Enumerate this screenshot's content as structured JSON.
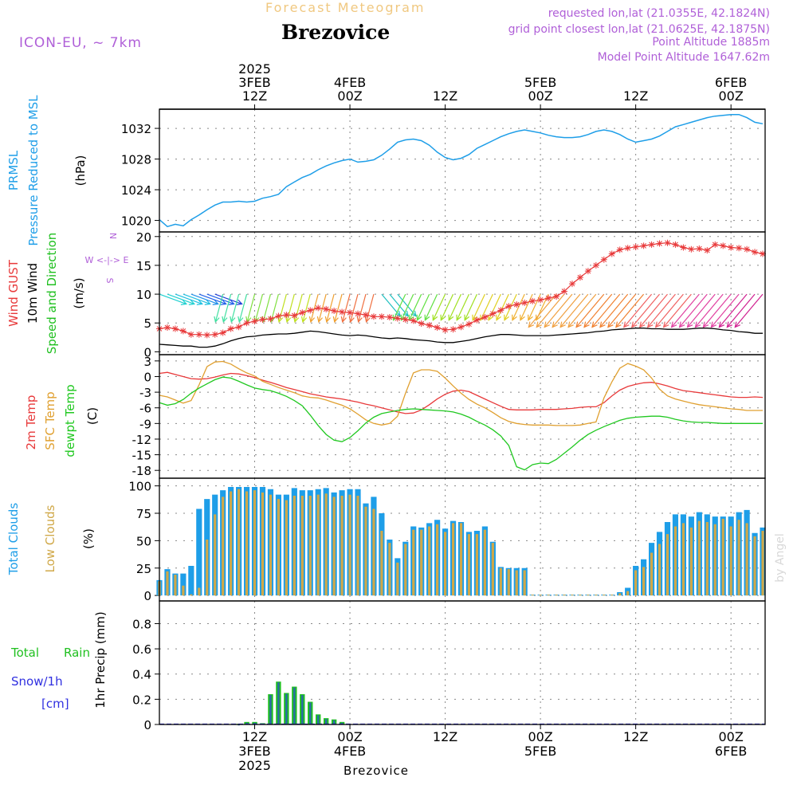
{
  "header": {
    "forecast_label": "Forecast Meteogram",
    "location": "Brezovice",
    "model": "ICON-EU, ~ 7km",
    "requested": "requested lon,lat (21.0355E, 42.1824N)",
    "grid_point": "grid point closest lon,lat (21.0625E, 42.1875N)",
    "point_altitude": "Point Altitude 1885m",
    "model_altitude": "Model Point Altitude 1647.62m"
  },
  "time_axis": {
    "top_labels": [
      {
        "h": 12,
        "lines": [
          "2025",
          "3FEB",
          "12Z"
        ]
      },
      {
        "h": 24,
        "lines": [
          "4FEB",
          "00Z"
        ]
      },
      {
        "h": 36,
        "lines": [
          "12Z"
        ]
      },
      {
        "h": 48,
        "lines": [
          "5FEB",
          "00Z"
        ]
      },
      {
        "h": 60,
        "lines": [
          "12Z"
        ]
      },
      {
        "h": 72,
        "lines": [
          "6FEB",
          "00Z"
        ]
      }
    ],
    "bottom_labels": [
      {
        "h": 12,
        "lines": [
          "12Z",
          "3FEB",
          "2025"
        ]
      },
      {
        "h": 24,
        "lines": [
          "00Z",
          "4FEB"
        ]
      },
      {
        "h": 36,
        "lines": [
          "12Z"
        ]
      },
      {
        "h": 48,
        "lines": [
          "00Z",
          "5FEB"
        ]
      },
      {
        "h": 60,
        "lines": [
          "12Z"
        ]
      },
      {
        "h": 72,
        "lines": [
          "00Z",
          "6FEB"
        ]
      }
    ],
    "bottom_title": "Brezovice"
  },
  "watermark": "by Angel",
  "colors": {
    "pressure": "#1e9ee8",
    "gust": "#e8393a",
    "wind": "#000000",
    "wind_label": "#20c020",
    "t2m": "#e8393a",
    "sfc": "#e0a030",
    "dewpt": "#20c820",
    "total_cloud": "#1e9ee8",
    "low_cloud": "#d0a848",
    "rain": "#20c020",
    "snow": "#3030e0",
    "header_purple": "#b060d8",
    "header_orange": "#f0c880"
  },
  "chart_data": [
    {
      "type": "line",
      "id": "pressure",
      "ylabels": [
        "PRMSL",
        "Pressure Reduced to MSL",
        "(hPa)"
      ],
      "ylim": [
        1018.5,
        1034.5
      ],
      "yticks": [
        1020,
        1024,
        1028,
        1032
      ],
      "x_hours": [
        0,
        1,
        2,
        3,
        4,
        5,
        6,
        7,
        8,
        9,
        10,
        11,
        12,
        13,
        14,
        15,
        16,
        17,
        18,
        19,
        20,
        21,
        22,
        23,
        24,
        25,
        26,
        27,
        28,
        29,
        30,
        31,
        32,
        33,
        34,
        35,
        36,
        37,
        38,
        39,
        40,
        41,
        42,
        43,
        44,
        45,
        46,
        47,
        48,
        49,
        50,
        51,
        52,
        53,
        54,
        55,
        56,
        57,
        58,
        59,
        60,
        61,
        62,
        63,
        64,
        65,
        66,
        67,
        68,
        69,
        70,
        71,
        72,
        73,
        74,
        75,
        76
      ],
      "series": [
        {
          "values": [
            1020.1,
            1019.2,
            1019.5,
            1019.3,
            1020.1,
            1020.7,
            1021.4,
            1022.0,
            1022.4,
            1022.4,
            1022.5,
            1022.4,
            1022.5,
            1022.9,
            1023.1,
            1023.4,
            1024.4,
            1025.0,
            1025.6,
            1026.0,
            1026.6,
            1027.1,
            1027.5,
            1027.8,
            1028.0,
            1027.6,
            1027.7,
            1027.9,
            1028.5,
            1029.3,
            1030.2,
            1030.5,
            1030.6,
            1030.4,
            1029.8,
            1028.9,
            1028.2,
            1027.9,
            1028.1,
            1028.6,
            1029.4,
            1029.9,
            1030.4,
            1030.9,
            1031.3,
            1031.6,
            1031.8,
            1031.6,
            1031.4,
            1031.1,
            1030.9,
            1030.8,
            1030.8,
            1030.9,
            1031.2,
            1031.6,
            1031.8,
            1031.6,
            1031.2,
            1030.6,
            1030.2,
            1030.4,
            1030.6,
            1031.0,
            1031.6,
            1032.2,
            1032.5,
            1032.8,
            1033.1,
            1033.4,
            1033.6,
            1033.7,
            1033.8,
            1033.8,
            1033.4,
            1032.8,
            1032.6
          ]
        }
      ]
    },
    {
      "type": "line",
      "id": "wind",
      "ylabels": [
        "Wind GUST",
        "10m Wind",
        "Speed and Direction",
        "(m/s)"
      ],
      "compass": [
        "N",
        "W  <-|->  E",
        "S"
      ],
      "ylim": [
        -0.5,
        20.8
      ],
      "yticks": [
        0,
        5,
        10,
        15,
        20
      ],
      "x_hours": [
        0,
        1,
        2,
        3,
        4,
        5,
        6,
        7,
        8,
        9,
        10,
        11,
        12,
        13,
        14,
        15,
        16,
        17,
        18,
        19,
        20,
        21,
        22,
        23,
        24,
        25,
        26,
        27,
        28,
        29,
        30,
        31,
        32,
        33,
        34,
        35,
        36,
        37,
        38,
        39,
        40,
        41,
        42,
        43,
        44,
        45,
        46,
        47,
        48,
        49,
        50,
        51,
        52,
        53,
        54,
        55,
        56,
        57,
        58,
        59,
        60,
        61,
        62,
        63,
        64,
        65,
        66,
        67,
        68,
        69,
        70,
        71,
        72,
        73,
        74,
        75,
        76
      ],
      "series": [
        {
          "values": [
            4.0,
            4.2,
            4.0,
            3.6,
            3.0,
            3.0,
            2.9,
            3.0,
            3.3,
            4.0,
            4.3,
            5.0,
            5.3,
            5.6,
            5.7,
            6.2,
            6.4,
            6.3,
            6.8,
            7.2,
            7.6,
            7.4,
            7.1,
            6.9,
            6.8,
            6.6,
            6.4,
            6.1,
            6.1,
            6.0,
            5.8,
            5.6,
            5.4,
            4.9,
            4.6,
            4.2,
            3.8,
            3.9,
            4.3,
            4.8,
            5.5,
            6.0,
            6.6,
            7.2,
            7.9,
            8.2,
            8.5,
            8.8,
            9.0,
            9.3,
            9.6,
            10.5,
            11.8,
            12.9,
            14.0,
            15.0,
            16.0,
            17.0,
            17.7,
            18.0,
            18.2,
            18.4,
            18.6,
            18.8,
            18.9,
            18.6,
            18.1,
            17.8,
            17.9,
            17.6,
            18.6,
            18.4,
            18.1,
            18.0,
            17.8,
            17.3,
            17.0
          ]
        },
        {
          "values": [
            1.3,
            1.2,
            1.1,
            1.0,
            1.0,
            0.8,
            0.8,
            1.0,
            1.4,
            1.9,
            2.3,
            2.6,
            2.7,
            2.9,
            3.0,
            3.1,
            3.1,
            3.2,
            3.4,
            3.6,
            3.5,
            3.3,
            3.1,
            2.9,
            2.8,
            2.9,
            2.8,
            2.6,
            2.4,
            2.3,
            2.4,
            2.3,
            2.1,
            2.0,
            1.9,
            1.7,
            1.6,
            1.6,
            1.8,
            2.0,
            2.3,
            2.6,
            2.8,
            3.0,
            3.0,
            2.9,
            2.8,
            2.8,
            2.8,
            2.8,
            2.9,
            3.0,
            3.1,
            3.2,
            3.3,
            3.5,
            3.6,
            3.8,
            3.9,
            4.0,
            4.1,
            4.1,
            4.0,
            4.0,
            3.9,
            3.9,
            3.9,
            4.0,
            4.1,
            4.1,
            4.0,
            3.8,
            3.7,
            3.5,
            3.4,
            3.2,
            3.2
          ]
        }
      ]
    },
    {
      "type": "line",
      "id": "temperature",
      "ylabels": [
        "2m Temp",
        "SFC Temp",
        "dewpt Temp",
        "(C)"
      ],
      "ylim": [
        -19.5,
        4.2
      ],
      "yticks": [
        3,
        0,
        -3,
        -6,
        -9,
        -12,
        -15,
        -18
      ],
      "x_hours": [
        0,
        1,
        2,
        3,
        4,
        5,
        6,
        7,
        8,
        9,
        10,
        11,
        12,
        13,
        14,
        15,
        16,
        17,
        18,
        19,
        20,
        21,
        22,
        23,
        24,
        25,
        26,
        27,
        28,
        29,
        30,
        31,
        32,
        33,
        34,
        35,
        36,
        37,
        38,
        39,
        40,
        41,
        42,
        43,
        44,
        45,
        46,
        47,
        48,
        49,
        50,
        51,
        52,
        53,
        54,
        55,
        56,
        57,
        58,
        59,
        60,
        61,
        62,
        63,
        64,
        65,
        66,
        67,
        68,
        69,
        70,
        71,
        72,
        73,
        74,
        75,
        76
      ],
      "series": [
        {
          "values": [
            0.6,
            0.8,
            0.4,
            0.0,
            -0.4,
            -0.5,
            -0.4,
            -0.1,
            0.3,
            0.6,
            0.5,
            0.2,
            -0.2,
            -0.7,
            -1.1,
            -1.6,
            -2.1,
            -2.5,
            -2.9,
            -3.3,
            -3.6,
            -3.9,
            -4.1,
            -4.3,
            -4.6,
            -4.9,
            -5.3,
            -5.6,
            -6.0,
            -6.4,
            -6.8,
            -7.1,
            -7.0,
            -6.4,
            -5.4,
            -4.3,
            -3.4,
            -2.8,
            -2.6,
            -2.9,
            -3.6,
            -4.3,
            -5.0,
            -5.7,
            -6.3,
            -6.4,
            -6.4,
            -6.4,
            -6.3,
            -6.3,
            -6.3,
            -6.2,
            -6.1,
            -5.9,
            -5.8,
            -5.8,
            -5.0,
            -3.7,
            -2.6,
            -1.9,
            -1.5,
            -1.2,
            -1.1,
            -1.4,
            -1.8,
            -2.3,
            -2.7,
            -2.9,
            -3.1,
            -3.3,
            -3.5,
            -3.7,
            -3.9,
            -4.0,
            -4.0,
            -3.9,
            -4.0
          ]
        },
        {
          "values": [
            -3.6,
            -3.9,
            -4.5,
            -5.1,
            -4.6,
            -1.6,
            1.9,
            2.8,
            2.9,
            2.4,
            1.5,
            0.7,
            0.1,
            -0.9,
            -1.5,
            -2.1,
            -2.6,
            -3.1,
            -3.7,
            -4.0,
            -4.1,
            -4.5,
            -5.0,
            -5.5,
            -6.2,
            -7.2,
            -8.3,
            -9.0,
            -9.3,
            -9.0,
            -7.6,
            -3.2,
            0.7,
            1.3,
            1.3,
            1.0,
            -0.3,
            -1.8,
            -3.2,
            -4.4,
            -5.3,
            -6.0,
            -6.9,
            -7.9,
            -8.6,
            -9.0,
            -9.2,
            -9.3,
            -9.3,
            -9.3,
            -9.4,
            -9.4,
            -9.4,
            -9.3,
            -9.0,
            -8.7,
            -4.1,
            -1.0,
            1.6,
            2.5,
            2.0,
            1.3,
            -0.3,
            -2.4,
            -3.7,
            -4.3,
            -4.7,
            -5.1,
            -5.4,
            -5.6,
            -5.8,
            -6.0,
            -6.2,
            -6.3,
            -6.5,
            -6.5,
            -6.5
          ]
        },
        {
          "values": [
            -5.0,
            -5.5,
            -5.2,
            -4.4,
            -3.2,
            -2.2,
            -1.4,
            -0.6,
            -0.1,
            -0.3,
            -0.9,
            -1.6,
            -2.2,
            -2.5,
            -2.7,
            -3.2,
            -3.8,
            -4.6,
            -5.6,
            -7.4,
            -9.4,
            -11.1,
            -12.2,
            -12.5,
            -11.7,
            -10.4,
            -8.9,
            -7.8,
            -7.1,
            -6.8,
            -6.5,
            -6.3,
            -6.2,
            -6.3,
            -6.4,
            -6.5,
            -6.6,
            -6.8,
            -7.2,
            -7.8,
            -8.6,
            -9.3,
            -10.2,
            -11.4,
            -13.2,
            -17.3,
            -17.9,
            -16.9,
            -16.6,
            -16.7,
            -15.9,
            -14.7,
            -13.5,
            -12.2,
            -11.1,
            -10.3,
            -9.6,
            -9.0,
            -8.4,
            -8.0,
            -7.8,
            -7.7,
            -7.6,
            -7.6,
            -7.8,
            -8.2,
            -8.5,
            -8.7,
            -8.8,
            -8.8,
            -8.9,
            -9.0,
            -9.0,
            -9.0,
            -9.0,
            -9.0,
            -9.0
          ]
        }
      ]
    },
    {
      "type": "bar",
      "id": "clouds",
      "ylabels": [
        "Total Clouds",
        "Low Clouds",
        "(%)"
      ],
      "ylim": [
        -5,
        107
      ],
      "yticks": [
        0,
        25,
        50,
        75,
        100
      ],
      "x_hours": [
        0,
        1,
        2,
        3,
        4,
        5,
        6,
        7,
        8,
        9,
        10,
        11,
        12,
        13,
        14,
        15,
        16,
        17,
        18,
        19,
        20,
        21,
        22,
        23,
        24,
        25,
        26,
        27,
        28,
        29,
        30,
        31,
        32,
        33,
        34,
        35,
        36,
        37,
        38,
        39,
        40,
        41,
        42,
        43,
        44,
        45,
        46,
        47,
        48,
        49,
        50,
        51,
        52,
        53,
        54,
        55,
        56,
        57,
        58,
        59,
        60,
        61,
        62,
        63,
        64,
        65,
        66,
        67,
        68,
        69,
        70,
        71,
        72,
        73,
        74,
        75,
        76
      ],
      "series": [
        {
          "values": [
            14,
            24,
            20,
            20,
            27,
            79,
            88,
            92,
            96,
            99,
            99,
            99,
            99,
            99,
            97,
            92,
            92,
            98,
            96,
            96,
            97,
            98,
            94,
            96,
            97,
            97,
            84,
            90,
            75,
            51,
            34,
            49,
            63,
            62,
            66,
            69,
            61,
            68,
            67,
            58,
            59,
            63,
            49,
            26,
            25,
            25,
            25,
            0,
            0,
            0,
            0,
            0,
            0,
            0,
            0,
            0,
            0,
            0,
            3,
            7,
            27,
            33,
            48,
            58,
            67,
            74,
            74,
            72,
            76,
            74,
            72,
            72,
            72,
            76,
            78,
            57,
            62
          ]
        },
        {
          "values": [
            13,
            22,
            19,
            9,
            1,
            7,
            51,
            74,
            90,
            95,
            97,
            95,
            96,
            94,
            92,
            88,
            87,
            91,
            91,
            91,
            92,
            93,
            90,
            91,
            92,
            91,
            81,
            79,
            59,
            48,
            30,
            47,
            60,
            60,
            63,
            65,
            58,
            66,
            66,
            56,
            56,
            60,
            48,
            25,
            24,
            23,
            23,
            0,
            0,
            0,
            0,
            0,
            0,
            0,
            0,
            0,
            0,
            0,
            2,
            4,
            23,
            26,
            39,
            47,
            56,
            63,
            66,
            62,
            68,
            67,
            65,
            70,
            63,
            69,
            66,
            54,
            59
          ]
        }
      ]
    },
    {
      "type": "bar",
      "id": "precip",
      "ylabels": [
        "1hr Precip (mm)"
      ],
      "legend": [
        "Total",
        "Rain",
        "Snow/1h",
        "[cm]"
      ],
      "ylim": [
        0,
        0.98
      ],
      "yticks": [
        0,
        0.2,
        0.4,
        0.6,
        0.8
      ],
      "x_hours": [
        10,
        11,
        12,
        13,
        14,
        15,
        16,
        17,
        18,
        19,
        20,
        21,
        22
      ],
      "series": [
        {
          "values": [
            0.005,
            0.02,
            0.02,
            0.01,
            0.24,
            0.34,
            0.25,
            0.3,
            0.24,
            0.18,
            0.08,
            0.05,
            0.04
          ]
        },
        {
          "values": [
            0.0,
            0.0,
            0.0,
            0.0,
            0.0,
            0.0,
            0.0,
            0.0,
            0.0,
            0.0,
            0.0,
            0.0,
            0.0
          ]
        }
      ],
      "extra_hours": [
        23
      ],
      "extra_values": [
        0.02
      ]
    }
  ]
}
